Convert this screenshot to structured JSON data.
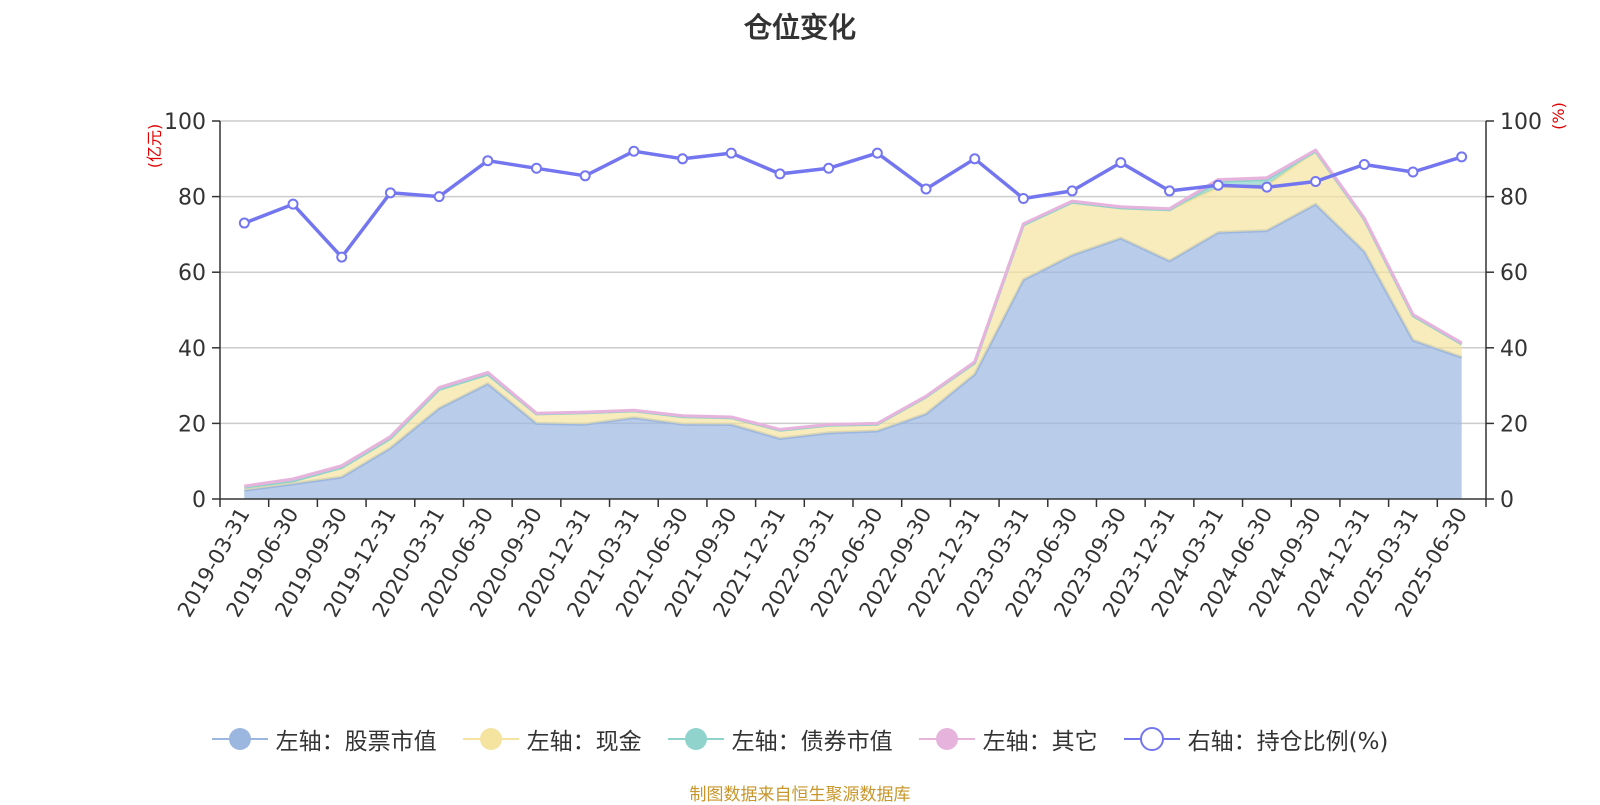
{
  "chart_data": {
    "type": "area",
    "title": "仓位变化",
    "left_axis_unit": "(亿元)",
    "right_axis_unit": "(%)",
    "ylim_left": [
      0,
      100
    ],
    "ylim_right": [
      0,
      100
    ],
    "left_ticks": [
      "0",
      "20",
      "40",
      "60",
      "80",
      "100"
    ],
    "right_ticks": [
      "0",
      "20",
      "40",
      "60",
      "80",
      "100"
    ],
    "grid": true,
    "legend_position": "bottom",
    "categories": [
      "2019-03-31",
      "2019-06-30",
      "2019-09-30",
      "2019-12-31",
      "2020-03-31",
      "2020-06-30",
      "2020-09-30",
      "2020-12-31",
      "2021-03-31",
      "2021-06-30",
      "2021-09-30",
      "2021-12-31",
      "2022-03-31",
      "2022-06-30",
      "2022-09-30",
      "2022-12-31",
      "2023-03-31",
      "2023-06-30",
      "2023-09-30",
      "2023-12-31",
      "2024-03-31",
      "2024-06-30",
      "2024-09-30",
      "2024-12-31",
      "2025-03-31",
      "2025-06-30"
    ],
    "series": [
      {
        "name": "左轴：股票市值",
        "axis": "left",
        "stack": true,
        "color": "#9bb7e0",
        "values": [
          2.3,
          4.0,
          5.8,
          13.5,
          24.0,
          30.5,
          20.0,
          19.8,
          21.5,
          19.8,
          19.7,
          16.0,
          17.5,
          18.0,
          22.5,
          33.0,
          58.0,
          64.5,
          69.0,
          63.0,
          70.5,
          71.0,
          78.0,
          65.5,
          42.0,
          37.5
        ]
      },
      {
        "name": "左轴：现金",
        "axis": "left",
        "stack": true,
        "color": "#f5e3a0",
        "values": [
          0.8,
          0.8,
          2.5,
          2.5,
          5.0,
          2.5,
          2.5,
          3.0,
          1.8,
          2.0,
          1.8,
          2.2,
          2.0,
          1.8,
          4.5,
          3.0,
          14.5,
          14.0,
          8.0,
          13.5,
          12.0,
          12.0,
          14.0,
          8.5,
          6.5,
          3.5
        ]
      },
      {
        "name": "左轴：债券市值",
        "axis": "left",
        "stack": true,
        "color": "#8fd3cc",
        "values": [
          0,
          0,
          0,
          0,
          0,
          0,
          0,
          0,
          0,
          0,
          0,
          0,
          0,
          0,
          0,
          0,
          0,
          0,
          0,
          0,
          1.5,
          1.5,
          0,
          0,
          0,
          0
        ]
      },
      {
        "name": "左轴：其它",
        "axis": "left",
        "stack": true,
        "color": "#e6b3dc",
        "values": [
          0.3,
          0.5,
          0.5,
          0.5,
          0.5,
          0.5,
          0.2,
          0.2,
          0.2,
          0.2,
          0.2,
          0.2,
          0.2,
          0.2,
          0.2,
          0.3,
          0.3,
          0.3,
          0.3,
          0.3,
          0.5,
          0.5,
          0.3,
          0.3,
          0.3,
          0.3
        ]
      },
      {
        "name": "右轴：持仓比例(%)",
        "axis": "right",
        "stack": false,
        "color": "#7476f0",
        "values": [
          73,
          78,
          64,
          81,
          80,
          89.5,
          87.5,
          85.5,
          92,
          90,
          91.5,
          86,
          87.5,
          91.5,
          82,
          90,
          79.5,
          81.5,
          89,
          81.5,
          83,
          82.5,
          84,
          88.5,
          86.5,
          90.5
        ]
      }
    ]
  },
  "legend": {
    "items": [
      {
        "label": "左轴：股票市值",
        "color": "#9bb7e0",
        "marker": "filled"
      },
      {
        "label": "左轴：现金",
        "color": "#f5e3a0",
        "marker": "filled"
      },
      {
        "label": "左轴：债券市值",
        "color": "#8fd3cc",
        "marker": "filled"
      },
      {
        "label": "左轴：其它",
        "color": "#e6b3dc",
        "marker": "filled"
      },
      {
        "label": "右轴：持仓比例(%)",
        "color": "#7476f0",
        "marker": "hollow"
      }
    ]
  },
  "footer": {
    "source": "制图数据来自恒生聚源数据库"
  }
}
